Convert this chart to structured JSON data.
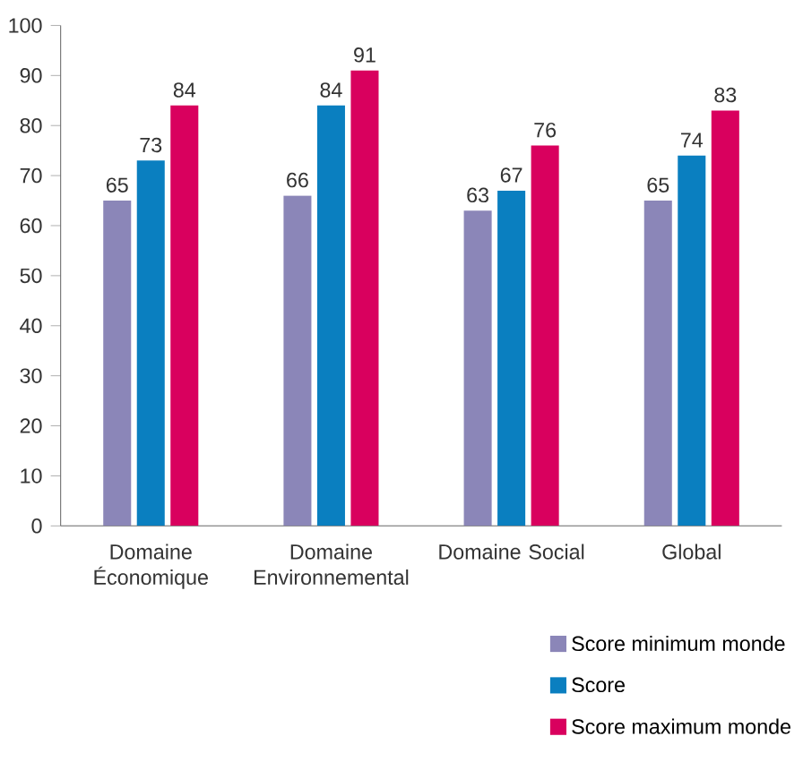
{
  "chart_data": {
    "type": "bar",
    "categories": [
      "Domaine Économique",
      "Domaine Environnemental",
      "Domaine Social",
      "Global"
    ],
    "series": [
      {
        "name": "Score minimum monde",
        "color": "#8b86b8",
        "values": [
          65,
          66,
          63,
          65
        ]
      },
      {
        "name": "Score",
        "color": "#0a7fc0",
        "values": [
          73,
          84,
          67,
          74
        ]
      },
      {
        "name": "Score maximum monde",
        "color": "#d9005e",
        "values": [
          84,
          91,
          76,
          83
        ]
      }
    ],
    "ylim": [
      0,
      100
    ],
    "yticks": [
      0,
      10,
      20,
      30,
      40,
      50,
      60,
      70,
      80,
      90,
      100
    ],
    "data_labels": true,
    "legend": "bottom right",
    "grid": false
  }
}
